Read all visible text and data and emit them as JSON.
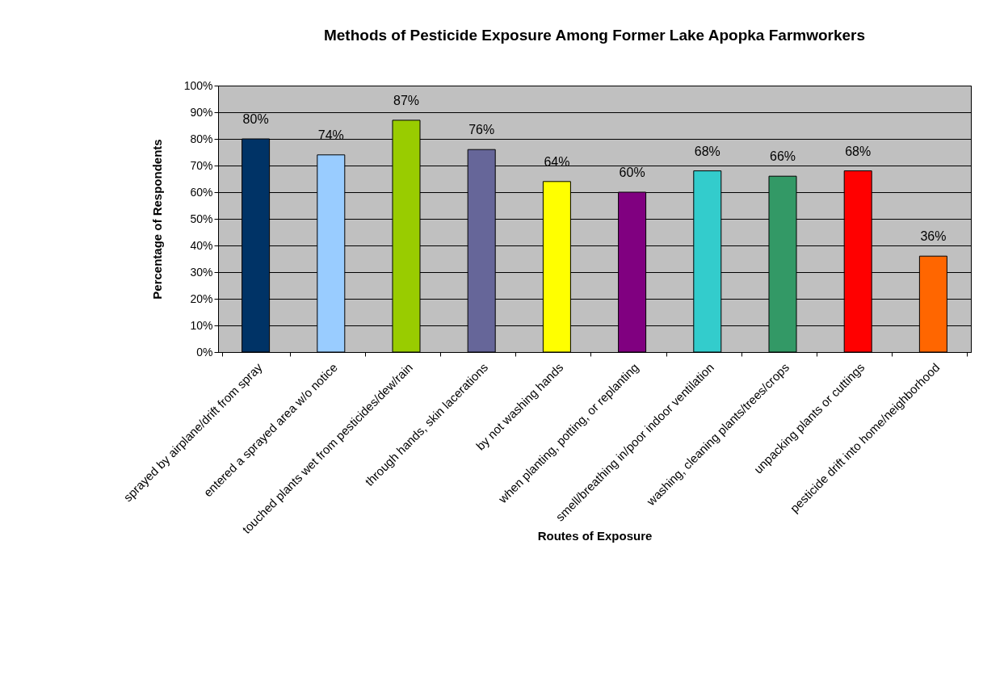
{
  "chart_data": {
    "type": "bar",
    "title": "Methods of Pesticide Exposure Among Former Lake Apopka Farmworkers",
    "xlabel": "Routes of Exposure",
    "ylabel": "Percentage of Respondents",
    "categories": [
      "sprayed by airplane/drift from spray",
      "entered a sprayed area w/o notice",
      "touched plants wet from pesticides/dew/rain",
      "through hands, skin lacerations",
      "by not washing hands",
      "when planting, potting, or replanting",
      "smell/breathing in/poor indoor ventilation",
      "washing, cleaning plants/trees/crops",
      "unpacking plants or cuttings",
      "pesticide drift into home/neighborhood"
    ],
    "values": [
      80,
      74,
      87,
      76,
      64,
      60,
      68,
      66,
      68,
      36
    ],
    "value_labels": [
      "80%",
      "74%",
      "87%",
      "76%",
      "64%",
      "60%",
      "68%",
      "66%",
      "68%",
      "36%"
    ],
    "colors": [
      "#003366",
      "#99ccff",
      "#99cc00",
      "#666699",
      "#ffff00",
      "#800080",
      "#33cccc",
      "#339966",
      "#ff0000",
      "#ff6600"
    ],
    "ylim": [
      0,
      100
    ],
    "yticks": [
      {
        "value": 0,
        "label": "0%"
      },
      {
        "value": 10,
        "label": "10%"
      },
      {
        "value": 20,
        "label": "20%"
      },
      {
        "value": 30,
        "label": "30%"
      },
      {
        "value": 40,
        "label": "40%"
      },
      {
        "value": 50,
        "label": "50%"
      },
      {
        "value": 60,
        "label": "60%"
      },
      {
        "value": 70,
        "label": "70%"
      },
      {
        "value": 80,
        "label": "80%"
      },
      {
        "value": 90,
        "label": "90%"
      },
      {
        "value": 100,
        "label": "100%"
      }
    ],
    "grid": "y"
  }
}
